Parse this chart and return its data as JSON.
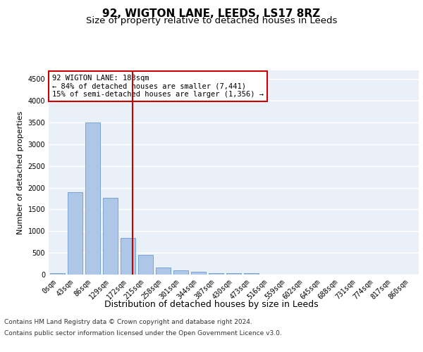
{
  "title": "92, WIGTON LANE, LEEDS, LS17 8RZ",
  "subtitle": "Size of property relative to detached houses in Leeds",
  "xlabel": "Distribution of detached houses by size in Leeds",
  "ylabel": "Number of detached properties",
  "bar_categories": [
    "0sqm",
    "43sqm",
    "86sqm",
    "129sqm",
    "172sqm",
    "215sqm",
    "258sqm",
    "301sqm",
    "344sqm",
    "387sqm",
    "430sqm",
    "473sqm",
    "516sqm",
    "559sqm",
    "602sqm",
    "645sqm",
    "688sqm",
    "731sqm",
    "774sqm",
    "817sqm",
    "860sqm"
  ],
  "bar_values": [
    30,
    1900,
    3500,
    1760,
    840,
    450,
    165,
    100,
    60,
    40,
    25,
    35,
    0,
    0,
    0,
    0,
    0,
    0,
    0,
    0,
    0
  ],
  "bar_color": "#aec6e8",
  "bar_edge_color": "#5a8fc2",
  "bg_color": "#eaf0f8",
  "grid_color": "#ffffff",
  "annotation_text": "92 WIGTON LANE: 183sqm\n← 84% of detached houses are smaller (7,441)\n15% of semi-detached houses are larger (1,356) →",
  "annotation_box_color": "#ffffff",
  "annotation_box_edge_color": "#cc0000",
  "ylim": [
    0,
    4700
  ],
  "yticks": [
    0,
    500,
    1000,
    1500,
    2000,
    2500,
    3000,
    3500,
    4000,
    4500
  ],
  "footer_line1": "Contains HM Land Registry data © Crown copyright and database right 2024.",
  "footer_line2": "Contains public sector information licensed under the Open Government Licence v3.0.",
  "title_fontsize": 11,
  "subtitle_fontsize": 9.5,
  "xlabel_fontsize": 9,
  "ylabel_fontsize": 8,
  "tick_fontsize": 7,
  "annotation_fontsize": 7.5,
  "footer_fontsize": 6.5
}
